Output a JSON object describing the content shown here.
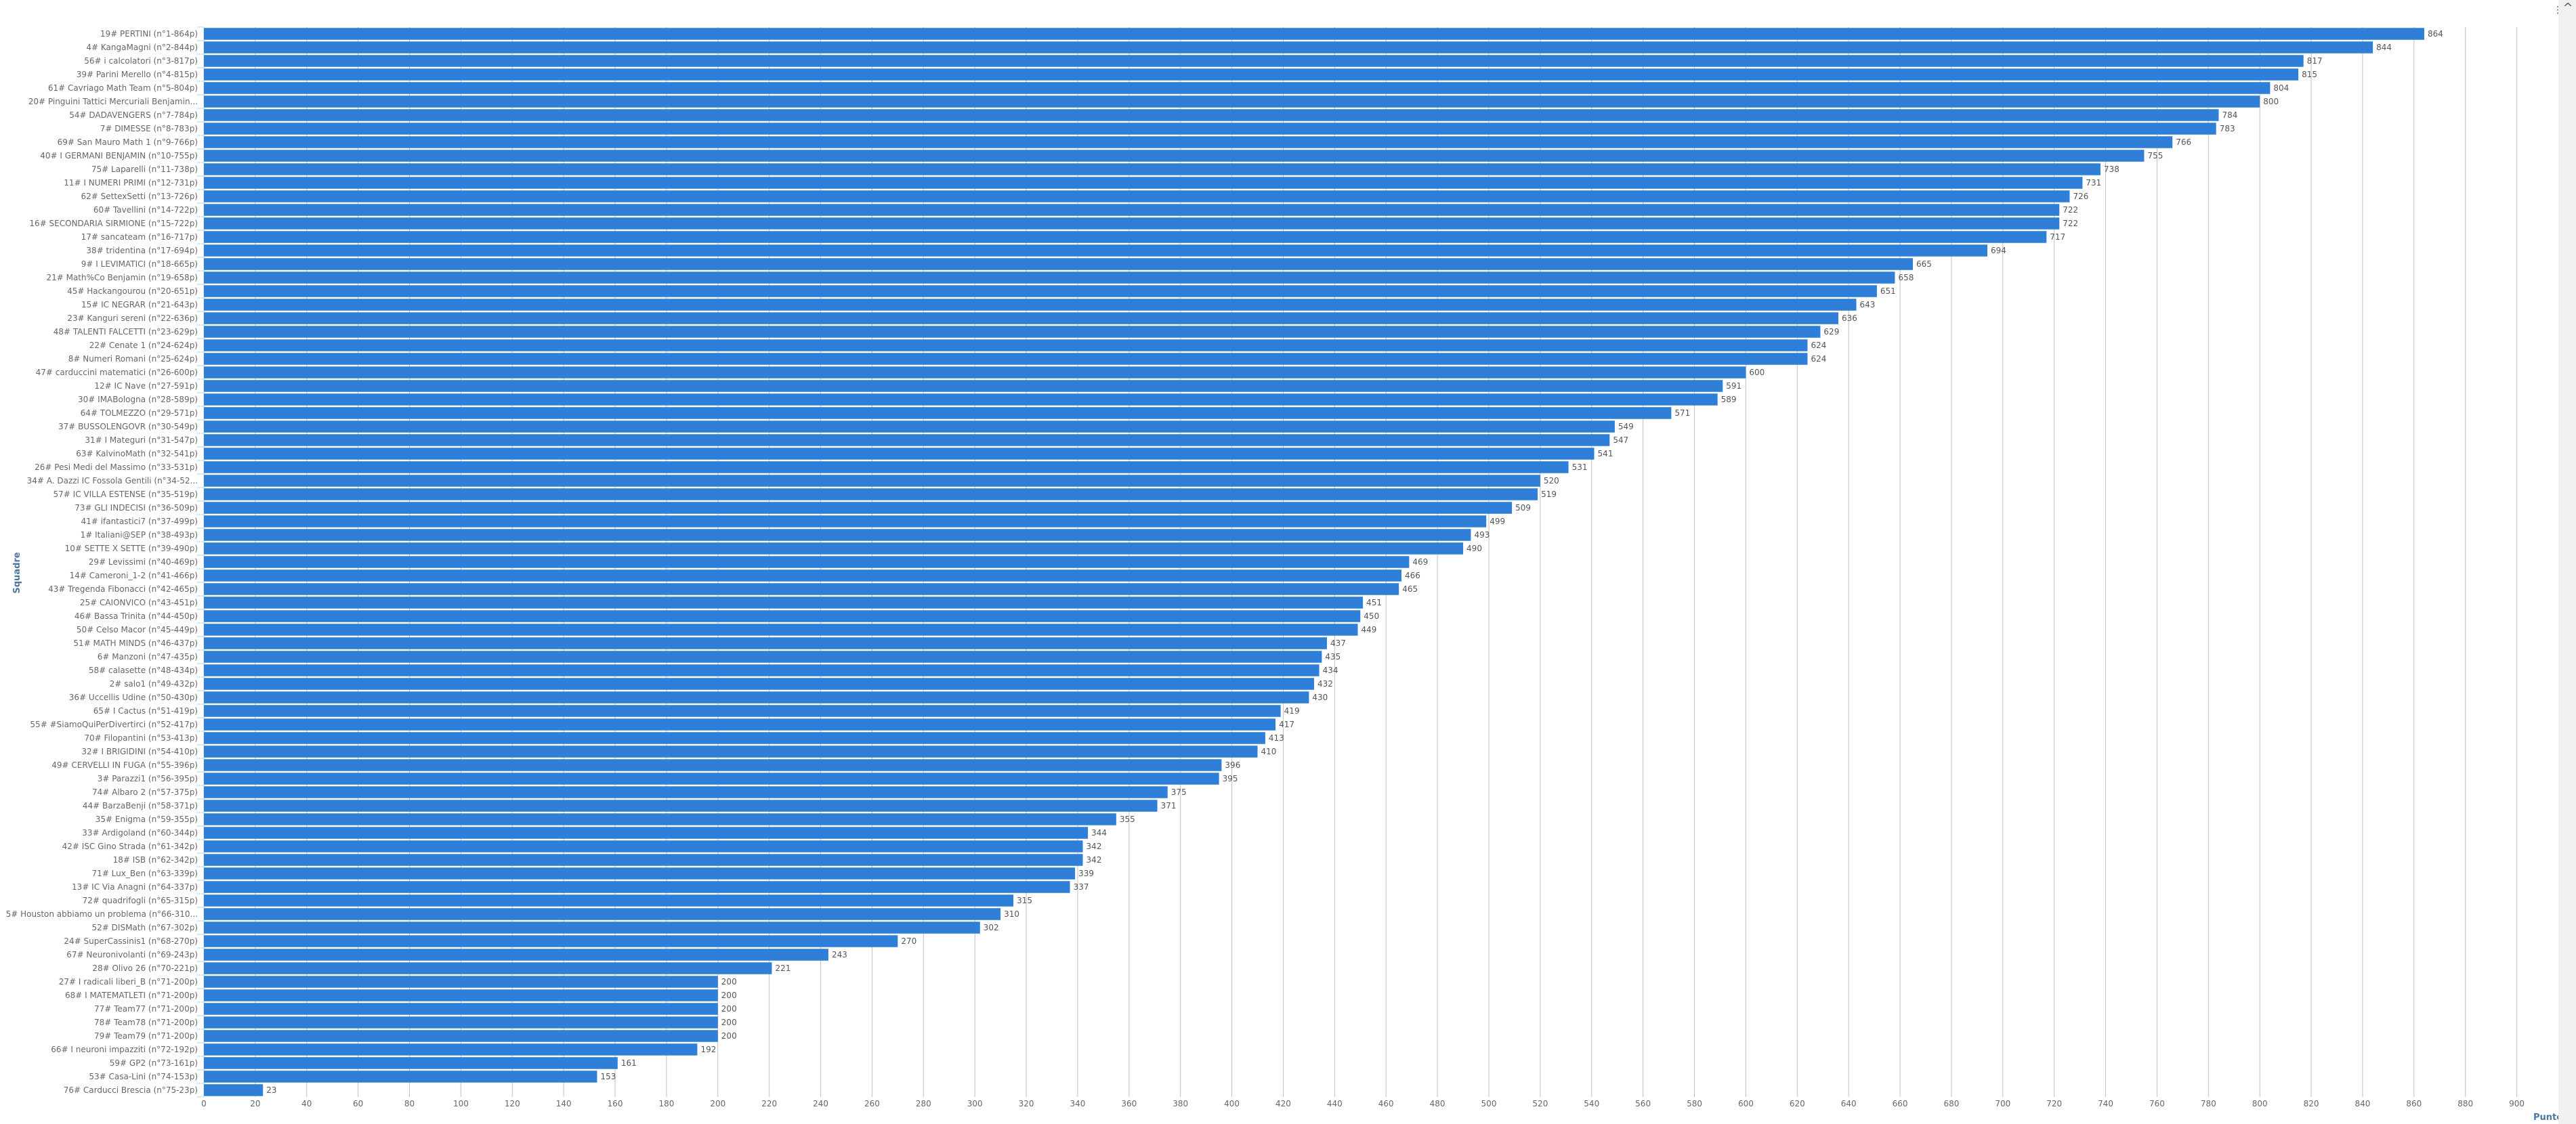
{
  "chart_data": {
    "type": "bar",
    "orientation": "horizontal",
    "title": "",
    "xlabel": "Squadre",
    "ylabel": "Punteg",
    "xlim": [
      0,
      915
    ],
    "ticks": [
      0,
      20,
      40,
      60,
      80,
      100,
      120,
      140,
      160,
      180,
      200,
      220,
      240,
      260,
      280,
      300,
      320,
      340,
      360,
      380,
      400,
      420,
      440,
      460,
      480,
      500,
      520,
      540,
      560,
      580,
      600,
      620,
      640,
      660,
      680,
      700,
      720,
      740,
      760,
      780,
      800,
      820,
      840,
      860,
      880,
      900
    ],
    "grid": true,
    "legend": "none",
    "color": "#2f7ed8",
    "categories": [
      "19# PERTINI (n°1-864p)",
      "4# KangaMagni (n°2-844p)",
      "56# i calcolatori (n°3-817p)",
      "39# Parini Merello (n°4-815p)",
      "61# Cavriago Math Team (n°5-804p)",
      "20# Pinguini Tattici Mercuriali Benjamin...",
      "54# DADAVENGERS (n°7-784p)",
      "7# DIMESSE (n°8-783p)",
      "69# San Mauro Math 1 (n°9-766p)",
      "40# I GERMANI BENJAMIN (n°10-755p)",
      "75# Laparelli (n°11-738p)",
      "11# I NUMERI PRIMI (n°12-731p)",
      "62# SettexSetti (n°13-726p)",
      "60# Tavellini (n°14-722p)",
      "16# SECONDARIA SIRMIONE (n°15-722p)",
      "17# sancateam (n°16-717p)",
      "38# tridentina (n°17-694p)",
      "9# I LEVIMATICI (n°18-665p)",
      "21# Math%Co Benjamin (n°19-658p)",
      "45# Hackangourou (n°20-651p)",
      "15# IC NEGRAR (n°21-643p)",
      "23# Kanguri sereni (n°22-636p)",
      "48# TALENTI FALCETTI (n°23-629p)",
      "22# Cenate 1 (n°24-624p)",
      "8# Numeri Romani (n°25-624p)",
      "47# carduccini matematici (n°26-600p)",
      "12# IC Nave (n°27-591p)",
      "30# IMABologna (n°28-589p)",
      "64# TOLMEZZO (n°29-571p)",
      "37# BUSSOLENGOVR (n°30-549p)",
      "31# I Mateguri (n°31-547p)",
      "63# KalvinoMath (n°32-541p)",
      "26# Pesi Medi del Massimo (n°33-531p)",
      "34# A. Dazzi IC Fossola Gentili (n°34-52...",
      "57# IC VILLA ESTENSE (n°35-519p)",
      "73# GLI INDECISI (n°36-509p)",
      "41# ifantastici7 (n°37-499p)",
      "1# Italiani@SEP (n°38-493p)",
      "10# SETTE X SETTE (n°39-490p)",
      "29# Levissimi (n°40-469p)",
      "14# Cameroni_1-2 (n°41-466p)",
      "43# Tregenda Fibonacci (n°42-465p)",
      "25# CAIONVICO (n°43-451p)",
      "46# Bassa Trinita (n°44-450p)",
      "50# Celso Macor (n°45-449p)",
      "51# MATH MINDS (n°46-437p)",
      "6# Manzoni (n°47-435p)",
      "58# calasette (n°48-434p)",
      "2# salo1 (n°49-432p)",
      "36# Uccellis Udine (n°50-430p)",
      "65# I Cactus (n°51-419p)",
      "55# #SiamoQuiPerDivertirci (n°52-417p)",
      "70# Filopantini (n°53-413p)",
      "32# I BRIGIDINI (n°54-410p)",
      "49# CERVELLI IN FUGA (n°55-396p)",
      "3# Parazzi1 (n°56-395p)",
      "74# Albaro 2 (n°57-375p)",
      "44# BarzaBenji (n°58-371p)",
      "35# Enigma (n°59-355p)",
      "33# Ardigoland (n°60-344p)",
      "42# ISC Gino Strada (n°61-342p)",
      "18# ISB (n°62-342p)",
      "71# Lux_Ben (n°63-339p)",
      "13# IC Via Anagni (n°64-337p)",
      "72# quadrifogli (n°65-315p)",
      "5# Houston abbiamo un problema (n°66-310...",
      "52# DISMath (n°67-302p)",
      "24# SuperCassinis1 (n°68-270p)",
      "67# Neuronivolanti (n°69-243p)",
      "28# Olivo 26 (n°70-221p)",
      "27# I radicali liberi_B (n°71-200p)",
      "68# I MATEMATLETI (n°71-200p)",
      "77# Team77 (n°71-200p)",
      "78# Team78 (n°71-200p)",
      "79# Team79 (n°71-200p)",
      "66# I neuroni impazziti (n°72-192p)",
      "59# GP2 (n°73-161p)",
      "53# Casa-Lini (n°74-153p)",
      "76# Carducci Brescia (n°75-23p)"
    ],
    "values": [
      864,
      844,
      817,
      815,
      804,
      800,
      784,
      783,
      766,
      755,
      738,
      731,
      726,
      722,
      722,
      717,
      694,
      665,
      658,
      651,
      643,
      636,
      629,
      624,
      624,
      600,
      591,
      589,
      571,
      549,
      547,
      541,
      531,
      520,
      519,
      509,
      499,
      493,
      490,
      469,
      466,
      465,
      451,
      450,
      449,
      437,
      435,
      434,
      432,
      430,
      419,
      417,
      413,
      410,
      396,
      395,
      375,
      371,
      355,
      344,
      342,
      342,
      339,
      337,
      315,
      310,
      302,
      270,
      243,
      221,
      200,
      200,
      200,
      200,
      200,
      192,
      161,
      153,
      23
    ]
  },
  "ui": {
    "menu_icon": "menu-dots-icon",
    "scroll_icon": "chevron-up-icon",
    "menu_glyph": "⋮",
    "scroll_glyph": "^"
  }
}
